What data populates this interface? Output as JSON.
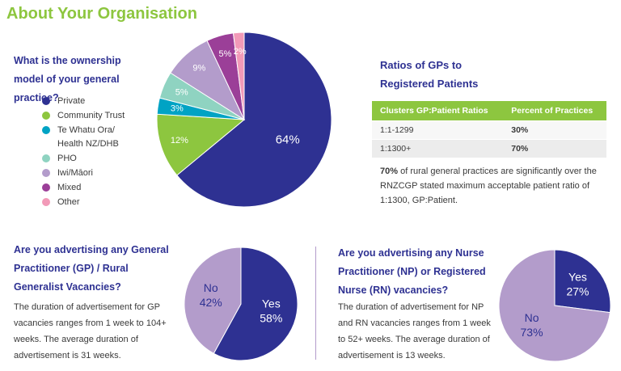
{
  "title": "About Your Organisation",
  "chart_data": [
    {
      "type": "pie",
      "title": "What is the ownership model of your general practice?",
      "categories": [
        "Private",
        "Community Trust",
        "Te Whatu Ora/ Health NZ/DHB",
        "PHO",
        "Iwi/Māori",
        "Mixed",
        "Other"
      ],
      "values": [
        64,
        12,
        3,
        5,
        9,
        5,
        2
      ],
      "value_labels": [
        "64%",
        "12%",
        "3%",
        "5%",
        "9%",
        "5%",
        "2%"
      ],
      "colors": [
        "#2e3192",
        "#8dc63f",
        "#00a3c4",
        "#8fd3c1",
        "#b39ccb",
        "#9b3f98",
        "#f29ab8"
      ],
      "legend": true
    },
    {
      "type": "pie",
      "title": "Are you advertising any General Practitioner (GP) / Rural Generalist Vacancies?",
      "annotation": "The duration of advertisement for GP vacancies ranges from 1 week to 104+ weeks. The average duration of advertisement is 31 weeks.",
      "categories": [
        "Yes",
        "No"
      ],
      "values": [
        58,
        42
      ],
      "value_labels": [
        "58%",
        "42%"
      ],
      "colors": [
        "#2e3192",
        "#b39ccb"
      ],
      "legend": false
    },
    {
      "type": "pie",
      "title": "Are you advertising any Nurse Practitioner (NP) or Registered Nurse (RN) vacancies?",
      "annotation": "The duration of advertisement for NP and RN vacancies ranges from 1 week to 52+ weeks. The average duration of advertisement is 13 weeks.",
      "categories": [
        "Yes",
        "No"
      ],
      "values": [
        27,
        73
      ],
      "value_labels": [
        "27%",
        "73%"
      ],
      "colors": [
        "#2e3192",
        "#b39ccb"
      ],
      "legend": false
    }
  ],
  "ratios": {
    "title": "Ratios of GPs to Registered Patients",
    "header": [
      "Clusters GP:Patient Ratios",
      "Percent of Practices"
    ],
    "rows": [
      [
        "1:1-1299",
        "30%"
      ],
      [
        "1:1300+",
        "70%"
      ]
    ],
    "note_bold": "70%",
    "note": " of rural general practices are significantly over the RNZCGP stated maximum acceptable patient ratio of 1:1300, GP:Patient."
  }
}
